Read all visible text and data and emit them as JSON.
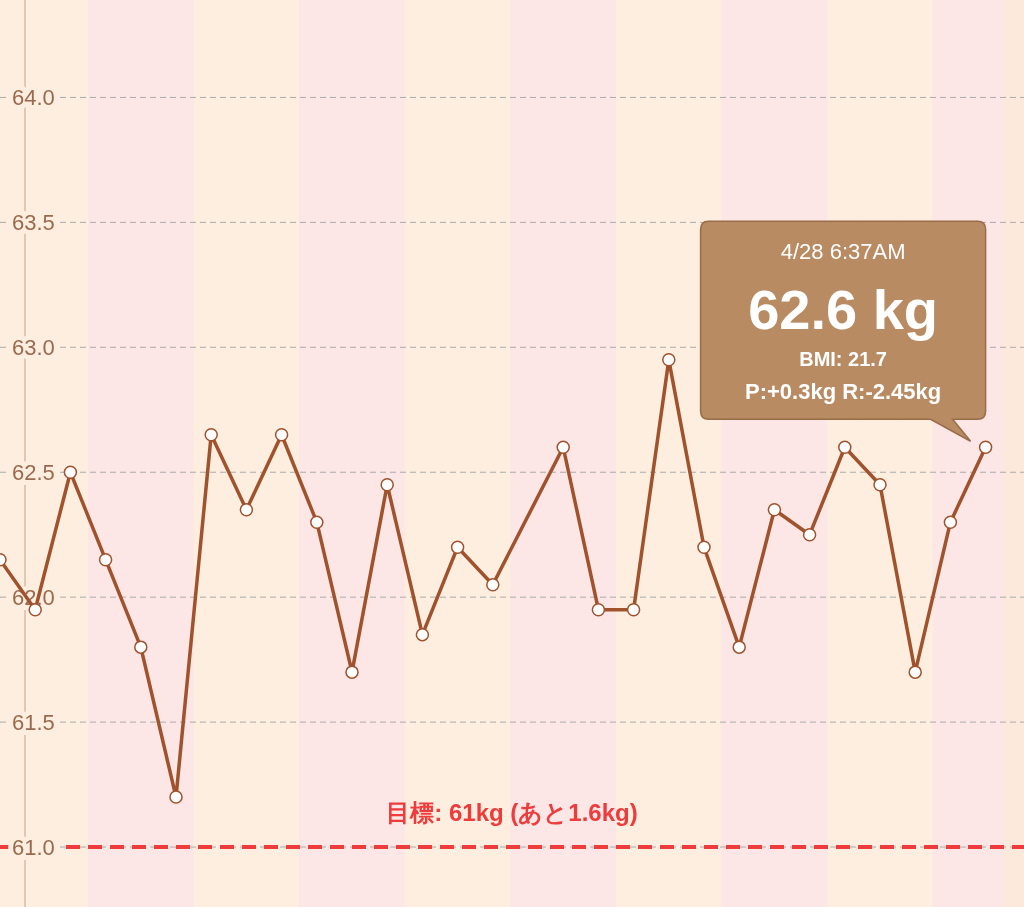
{
  "chart_data": {
    "type": "line",
    "categories": [
      null,
      null,
      null,
      null,
      null,
      null,
      null,
      null,
      null,
      null,
      null,
      null,
      null,
      null,
      null,
      null,
      null,
      null,
      null,
      null,
      null,
      null,
      null,
      null,
      null,
      null,
      null,
      null,
      null
    ],
    "series": [
      {
        "color": "#a0522d",
        "values": [
          62.15,
          61.95,
          62.5,
          62.15,
          61.8,
          61.2,
          62.65,
          62.35,
          62.65,
          62.3,
          61.7,
          62.45,
          61.85,
          62.2,
          62.05,
          null,
          62.6,
          61.95,
          61.95,
          62.95,
          62.2,
          61.8,
          62.35,
          62.25,
          62.6,
          62.45,
          61.7,
          62.3,
          62.6
        ]
      }
    ],
    "ylim": [
      60.76,
      64.39
    ],
    "yticks": [
      {
        "value": 61,
        "label": "61.0"
      },
      {
        "value": 61.5,
        "label": "61.5"
      },
      {
        "value": 62,
        "label": "62.0"
      },
      {
        "value": 62.5,
        "label": "62.5"
      },
      {
        "value": 63,
        "label": "63.0"
      },
      {
        "value": 63.5,
        "label": "63.5"
      },
      {
        "value": 64,
        "label": "64.0"
      }
    ],
    "tick_labels": "y",
    "grid": "y",
    "marker": "circle",
    "line_style": "solid",
    "ref_lines": [
      {
        "axis": "y",
        "value": 61,
        "label": "目標: 61kg (あと1.6kg)",
        "color": "#ee3b3b",
        "line_style": "dashed"
      }
    ],
    "annotations": [
      "4/28 6:37AM",
      "62.6 kg",
      "BMI: 21.7",
      "P:+0.3kg  R:-2.45kg"
    ]
  }
}
